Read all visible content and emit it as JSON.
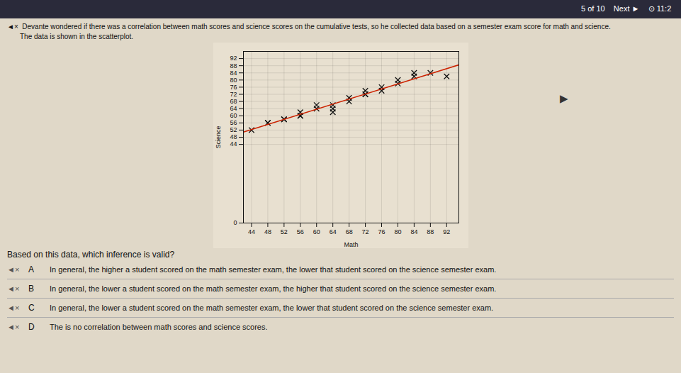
{
  "chart_data": {
    "type": "scatter",
    "xlabel": "Math",
    "ylabel": "Science",
    "series": [
      {
        "type": "scatter",
        "color": "#111111",
        "marker": "x",
        "x": [
          44,
          48,
          48,
          52,
          52,
          56,
          56,
          56,
          60,
          60,
          64,
          64,
          64,
          68,
          68,
          72,
          72,
          72,
          76,
          76,
          80,
          80,
          84,
          84,
          88,
          92
        ],
        "values": [
          52,
          56,
          56,
          58,
          58,
          60,
          60,
          62,
          64,
          66,
          62,
          64,
          66,
          68,
          70,
          72,
          72,
          74,
          76,
          74,
          78,
          80,
          82,
          84,
          84,
          82
        ]
      },
      {
        "type": "line",
        "color": "#cc2200",
        "x": [
          42,
          95
        ],
        "values": [
          50.8942,
          88.4839
        ]
      }
    ],
    "xlim": [
      42,
      95
    ],
    "ylim": [
      0,
      96
    ],
    "xticks": [
      44,
      48,
      52,
      56,
      60,
      64,
      68,
      72,
      76,
      80,
      84,
      88,
      92
    ],
    "yticks": [
      0,
      44,
      48,
      52,
      56,
      60,
      64,
      68,
      72,
      76,
      80,
      84,
      88,
      92
    ],
    "grid": true,
    "annotations": [
      "5 of 10    Next ►    ⊙ 11:2",
      "◄×  Devante wondered if there was a correlation between math scores and science scores on the cumulative tests, so he collected data based on a semester exam score for math and science.",
      "The data is shown in the scatterplot.",
      "Based on this data, which inference is valid?",
      "▶",
      "◄×",
      "A",
      "In general, the higher a student scored on the math semester exam, the lower that student scored on the science semester exam.",
      "◄×",
      "B",
      "In general, the lower a student scored on the math semester exam, the higher that student scored on the science semester exam.",
      "◄×",
      "C",
      "In general, the lower a student scored on the math semester exam, the lower that student scored on the science semester exam.",
      "◄×",
      "D",
      "The is no correlation between math scores and science scores."
    ]
  }
}
